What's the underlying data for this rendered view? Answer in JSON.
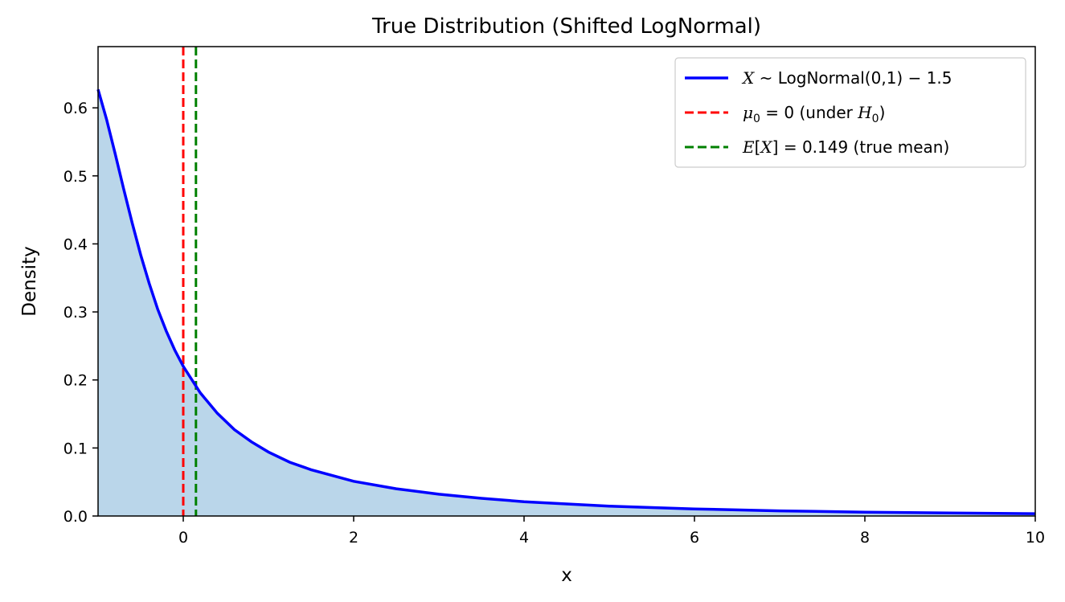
{
  "chart_data": {
    "type": "line",
    "title": "True Distribution (Shifted LogNormal)",
    "xlabel": "x",
    "ylabel": "Density",
    "xlim": [
      -1,
      10
    ],
    "ylim": [
      0,
      0.69
    ],
    "xticks": [
      0,
      2,
      4,
      6,
      8,
      10
    ],
    "yticks": [
      0.0,
      0.1,
      0.2,
      0.3,
      0.4,
      0.5,
      0.6
    ],
    "xtick_labels": [
      "0",
      "2",
      "4",
      "6",
      "8",
      "10"
    ],
    "ytick_labels": [
      "0.0",
      "0.1",
      "0.2",
      "0.3",
      "0.4",
      "0.5",
      "0.6"
    ],
    "grid": false,
    "legend_position": "top-right",
    "series": [
      {
        "name": "X ~ LogNormal(0,1) − 1.5",
        "kind": "pdf-line-filled",
        "color": "#0000ff",
        "fill_color": "#bad6ea",
        "x": [
          -1.0,
          -0.9,
          -0.8,
          -0.7,
          -0.6,
          -0.5,
          -0.4,
          -0.3,
          -0.2,
          -0.1,
          0.0,
          0.2,
          0.4,
          0.6,
          0.8,
          1.0,
          1.25,
          1.5,
          2.0,
          2.5,
          3.0,
          3.5,
          4.0,
          5.0,
          6.0,
          7.0,
          8.0,
          9.0,
          10.0
        ],
        "y": [
          0.627,
          0.583,
          0.533,
          0.481,
          0.431,
          0.384,
          0.342,
          0.304,
          0.272,
          0.244,
          0.22,
          0.181,
          0.151,
          0.127,
          0.109,
          0.094,
          0.079,
          0.068,
          0.051,
          0.04,
          0.032,
          0.026,
          0.021,
          0.0145,
          0.0104,
          0.0076,
          0.0057,
          0.0044,
          0.0034
        ]
      },
      {
        "name": "μ0 = 0 (under H0)",
        "kind": "vline",
        "x": 0,
        "color": "#ff0000",
        "dash": true
      },
      {
        "name": "E[X] = 0.149 (true mean)",
        "kind": "vline",
        "x": 0.149,
        "color": "#008000",
        "dash": true
      }
    ]
  }
}
